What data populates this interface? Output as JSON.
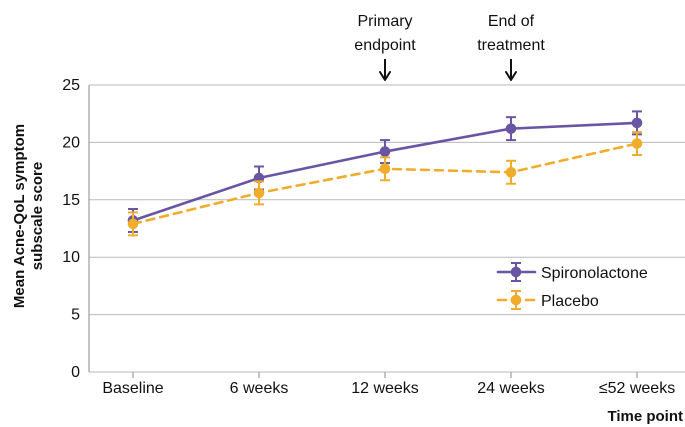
{
  "chart_data": {
    "type": "line",
    "title": "",
    "xlabel": "Time point",
    "ylabel": [
      "Mean Acne-QoL symptom",
      "subscale score"
    ],
    "categories": [
      "Baseline",
      "6 weeks",
      "12 weeks",
      "24 weeks",
      "≤52 weeks"
    ],
    "ylim": [
      0,
      25
    ],
    "yticks": [
      0,
      5,
      10,
      15,
      20,
      25
    ],
    "grid": true,
    "legend_placement": "bottom-right",
    "series": [
      {
        "name": "Spironolactone",
        "color": "#6a55a4",
        "line_style": "solid",
        "values": [
          13.2,
          16.9,
          19.2,
          21.2,
          21.7
        ],
        "error_low": [
          12.2,
          15.9,
          18.2,
          20.2,
          20.7
        ],
        "error_high": [
          14.2,
          17.9,
          20.2,
          22.2,
          22.7
        ]
      },
      {
        "name": "Placebo",
        "color": "#f0ac2b",
        "line_style": "dashed",
        "values": [
          12.9,
          15.6,
          17.7,
          17.4,
          19.9
        ],
        "error_low": [
          11.9,
          14.6,
          16.7,
          16.4,
          18.9
        ],
        "error_high": [
          13.9,
          16.6,
          18.7,
          18.4,
          20.9
        ]
      }
    ],
    "annotations": [
      {
        "category": "12 weeks",
        "lines": [
          "Primary",
          "endpoint"
        ]
      },
      {
        "category": "24 weeks",
        "lines": [
          "End of",
          "treatment"
        ]
      }
    ]
  }
}
